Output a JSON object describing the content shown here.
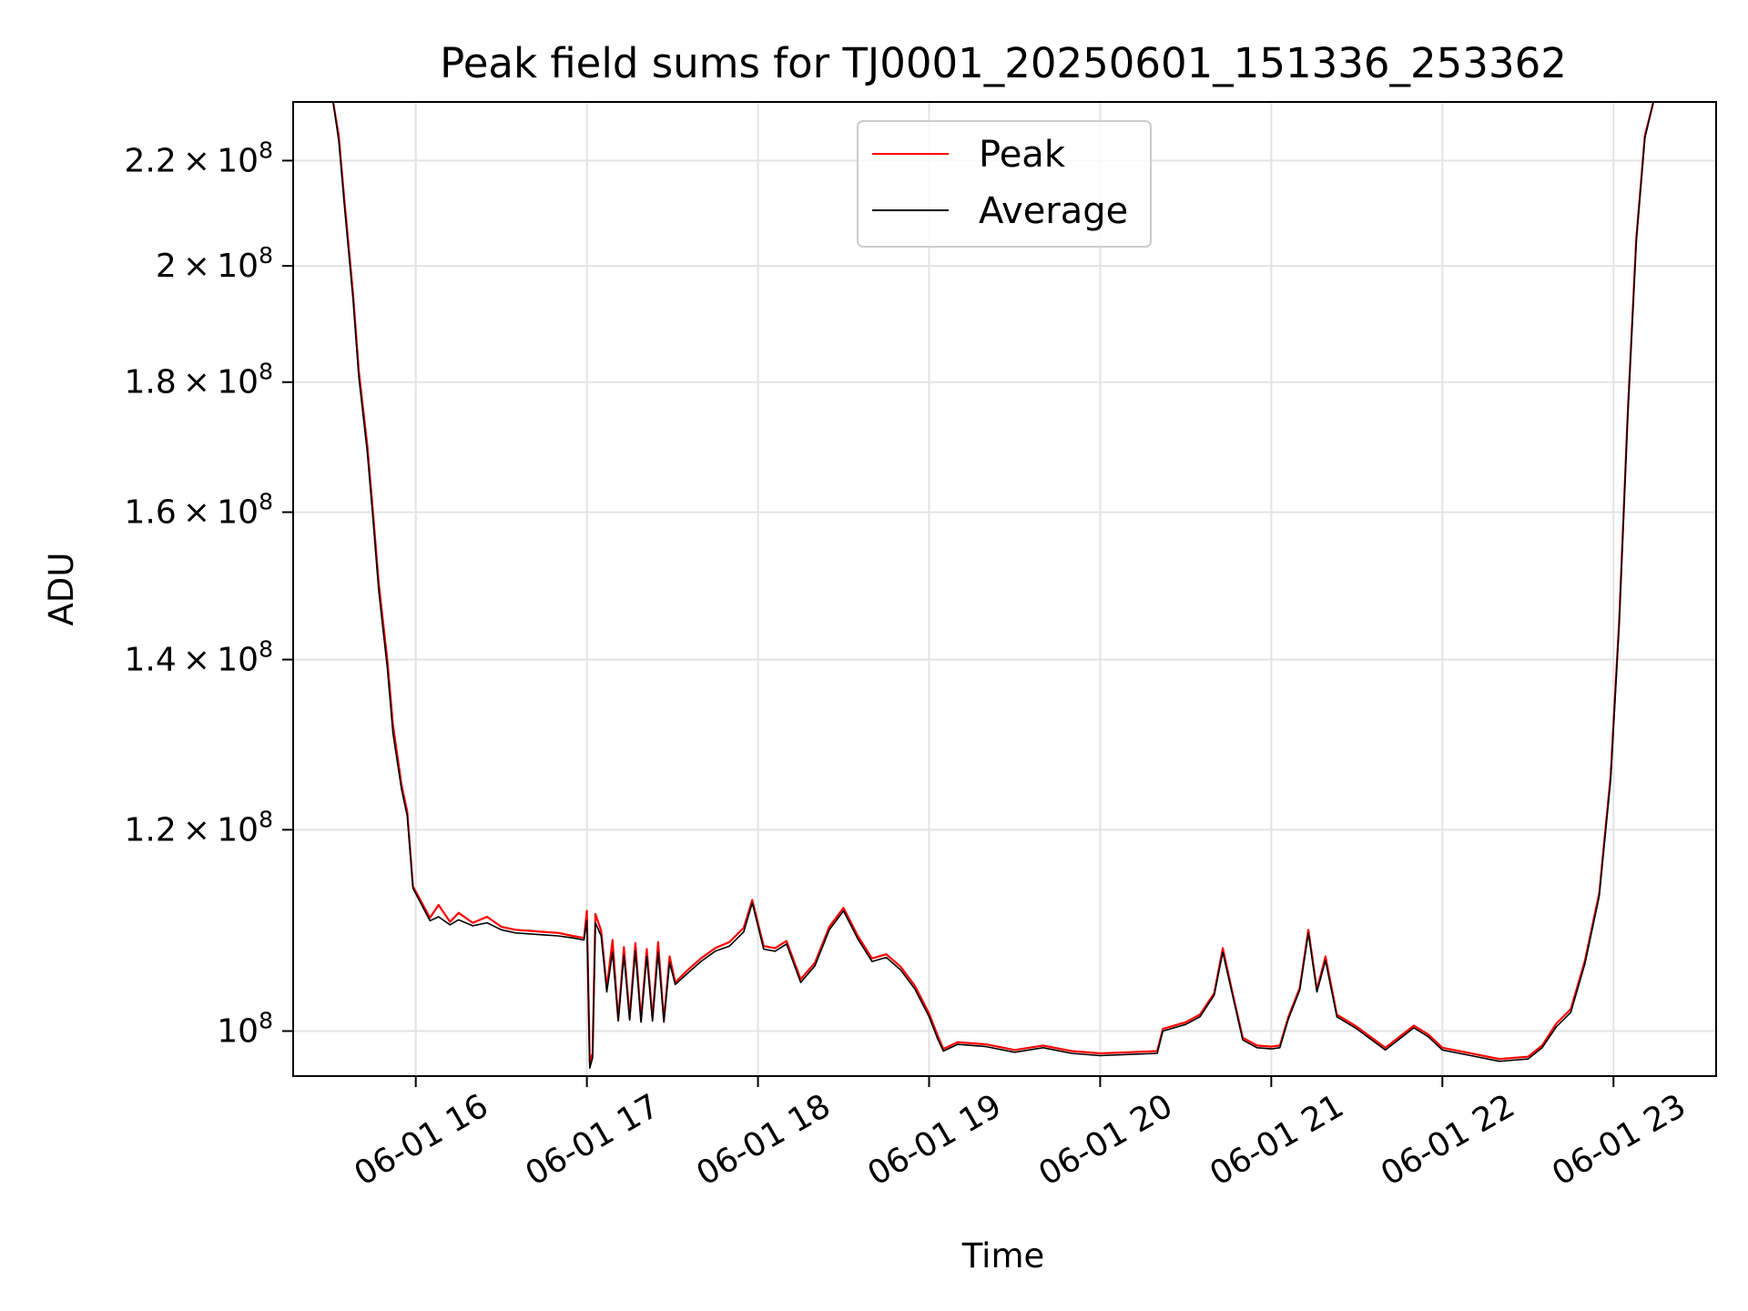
{
  "chart_data": {
    "type": "line",
    "title": "Peak field sums for TJ0001_20250601_151336_253362",
    "xlabel": "Time",
    "ylabel": "ADU",
    "x_axis": {
      "kind": "datetime",
      "range": [
        "2025-06-01 15:17",
        "2025-06-01 23:36"
      ],
      "ticks": [
        {
          "value": "2025-06-01 16:00",
          "label": "06-01 16"
        },
        {
          "value": "2025-06-01 17:00",
          "label": "06-01 17"
        },
        {
          "value": "2025-06-01 18:00",
          "label": "06-01 18"
        },
        {
          "value": "2025-06-01 19:00",
          "label": "06-01 19"
        },
        {
          "value": "2025-06-01 20:00",
          "label": "06-01 20"
        },
        {
          "value": "2025-06-01 21:00",
          "label": "06-01 21"
        },
        {
          "value": "2025-06-01 22:00",
          "label": "06-01 22"
        },
        {
          "value": "2025-06-01 23:00",
          "label": "06-01 23"
        }
      ]
    },
    "y_axis": {
      "scale": "log",
      "range": [
        96000000,
        232000000
      ],
      "ticks": [
        {
          "value": 100000000,
          "mantissa": "",
          "exponent": "8"
        },
        {
          "value": 120000000,
          "mantissa": "1.2",
          "exponent": "8"
        },
        {
          "value": 140000000,
          "mantissa": "1.4",
          "exponent": "8"
        },
        {
          "value": 160000000,
          "mantissa": "1.6",
          "exponent": "8"
        },
        {
          "value": 180000000,
          "mantissa": "1.8",
          "exponent": "8"
        },
        {
          "value": 200000000,
          "mantissa": "2",
          "exponent": "8"
        },
        {
          "value": 220000000,
          "mantissa": "2.2",
          "exponent": "8"
        }
      ]
    },
    "grid": true,
    "legend": {
      "placement": "upper center"
    },
    "series": [
      {
        "name": "Peak",
        "color": "#ff0000",
        "points": [
          [
            "2025-06-01 15:31",
            232000000
          ],
          [
            "2025-06-01 15:33",
            225000000
          ],
          [
            "2025-06-01 15:35",
            212000000
          ],
          [
            "2025-06-01 15:38",
            195000000
          ],
          [
            "2025-06-01 15:40",
            182000000
          ],
          [
            "2025-06-01 15:43",
            170000000
          ],
          [
            "2025-06-01 15:45",
            160000000
          ],
          [
            "2025-06-01 15:47",
            150000000
          ],
          [
            "2025-06-01 15:50",
            140000000
          ],
          [
            "2025-06-01 15:52",
            132000000
          ],
          [
            "2025-06-01 15:55",
            125000000
          ],
          [
            "2025-06-01 15:57",
            122000000
          ],
          [
            "2025-06-01 15:59",
            114000000
          ],
          [
            "2025-06-01 16:05",
            110800000
          ],
          [
            "2025-06-01 16:08",
            112100000
          ],
          [
            "2025-06-01 16:12",
            110400000
          ],
          [
            "2025-06-01 16:15",
            111300000
          ],
          [
            "2025-06-01 16:20",
            110300000
          ],
          [
            "2025-06-01 16:25",
            110900000
          ],
          [
            "2025-06-01 16:30",
            109900000
          ],
          [
            "2025-06-01 16:35",
            109600000
          ],
          [
            "2025-06-01 16:40",
            109500000
          ],
          [
            "2025-06-01 16:45",
            109400000
          ],
          [
            "2025-06-01 16:50",
            109300000
          ],
          [
            "2025-06-01 16:55",
            109000000
          ],
          [
            "2025-06-01 16:59",
            108800000
          ],
          [
            "2025-06-01 17:00",
            111500000
          ],
          [
            "2025-06-01 17:01",
            97200000
          ],
          [
            "2025-06-01 17:02",
            98000000
          ],
          [
            "2025-06-01 17:03",
            111200000
          ],
          [
            "2025-06-01 17:05",
            109500000
          ],
          [
            "2025-06-01 17:07",
            104000000
          ],
          [
            "2025-06-01 17:09",
            108600000
          ],
          [
            "2025-06-01 17:11",
            101000000
          ],
          [
            "2025-06-01 17:13",
            107900000
          ],
          [
            "2025-06-01 17:15",
            101200000
          ],
          [
            "2025-06-01 17:17",
            108300000
          ],
          [
            "2025-06-01 17:19",
            101000000
          ],
          [
            "2025-06-01 17:21",
            107700000
          ],
          [
            "2025-06-01 17:23",
            101100000
          ],
          [
            "2025-06-01 17:25",
            108400000
          ],
          [
            "2025-06-01 17:27",
            101000000
          ],
          [
            "2025-06-01 17:29",
            107000000
          ],
          [
            "2025-06-01 17:31",
            104500000
          ],
          [
            "2025-06-01 17:35",
            105600000
          ],
          [
            "2025-06-01 17:40",
            106800000
          ],
          [
            "2025-06-01 17:45",
            107800000
          ],
          [
            "2025-06-01 17:50",
            108400000
          ],
          [
            "2025-06-01 17:55",
            109800000
          ],
          [
            "2025-06-01 17:58",
            112600000
          ],
          [
            "2025-06-01 18:02",
            108000000
          ],
          [
            "2025-06-01 18:06",
            107800000
          ],
          [
            "2025-06-01 18:10",
            108500000
          ],
          [
            "2025-06-01 18:15",
            104800000
          ],
          [
            "2025-06-01 18:20",
            106400000
          ],
          [
            "2025-06-01 18:25",
            109900000
          ],
          [
            "2025-06-01 18:30",
            111800000
          ],
          [
            "2025-06-01 18:35",
            109000000
          ],
          [
            "2025-06-01 18:40",
            106800000
          ],
          [
            "2025-06-01 18:45",
            107200000
          ],
          [
            "2025-06-01 18:50",
            106000000
          ],
          [
            "2025-06-01 18:55",
            104200000
          ],
          [
            "2025-06-01 19:00",
            101600000
          ],
          [
            "2025-06-01 19:03",
            99600000
          ],
          [
            "2025-06-01 19:05",
            98400000
          ],
          [
            "2025-06-01 19:10",
            99000000
          ],
          [
            "2025-06-01 19:20",
            98800000
          ],
          [
            "2025-06-01 19:30",
            98300000
          ],
          [
            "2025-06-01 19:40",
            98700000
          ],
          [
            "2025-06-01 19:50",
            98200000
          ],
          [
            "2025-06-01 20:00",
            98000000
          ],
          [
            "2025-06-01 20:10",
            98100000
          ],
          [
            "2025-06-01 20:20",
            98200000
          ],
          [
            "2025-06-01 20:22",
            100200000
          ],
          [
            "2025-06-01 20:30",
            100800000
          ],
          [
            "2025-06-01 20:35",
            101500000
          ],
          [
            "2025-06-01 20:40",
            103500000
          ],
          [
            "2025-06-01 20:43",
            107800000
          ],
          [
            "2025-06-01 20:46",
            104000000
          ],
          [
            "2025-06-01 20:50",
            99400000
          ],
          [
            "2025-06-01 20:55",
            98700000
          ],
          [
            "2025-06-01 21:00",
            98600000
          ],
          [
            "2025-06-01 21:03",
            98700000
          ],
          [
            "2025-06-01 21:06",
            101300000
          ],
          [
            "2025-06-01 21:10",
            104000000
          ],
          [
            "2025-06-01 21:13",
            109600000
          ],
          [
            "2025-06-01 21:16",
            103800000
          ],
          [
            "2025-06-01 21:19",
            107000000
          ],
          [
            "2025-06-01 21:23",
            101500000
          ],
          [
            "2025-06-01 21:30",
            100400000
          ],
          [
            "2025-06-01 21:40",
            98500000
          ],
          [
            "2025-06-01 21:50",
            100500000
          ],
          [
            "2025-06-01 21:55",
            99700000
          ],
          [
            "2025-06-01 22:00",
            98500000
          ],
          [
            "2025-06-01 22:10",
            98000000
          ],
          [
            "2025-06-01 22:20",
            97500000
          ],
          [
            "2025-06-01 22:30",
            97700000
          ],
          [
            "2025-06-01 22:35",
            98700000
          ],
          [
            "2025-06-01 22:40",
            100700000
          ],
          [
            "2025-06-01 22:45",
            102000000
          ],
          [
            "2025-06-01 22:50",
            106600000
          ],
          [
            "2025-06-01 22:55",
            113300000
          ],
          [
            "2025-06-01 22:59",
            126000000
          ],
          [
            "2025-06-01 23:02",
            145000000
          ],
          [
            "2025-06-01 23:05",
            175000000
          ],
          [
            "2025-06-01 23:08",
            205000000
          ],
          [
            "2025-06-01 23:11",
            225000000
          ],
          [
            "2025-06-01 23:14",
            232000000
          ]
        ]
      },
      {
        "name": "Average",
        "color": "#000000",
        "points": [
          [
            "2025-06-01 15:31",
            232000000
          ],
          [
            "2025-06-01 15:33",
            224000000
          ],
          [
            "2025-06-01 15:35",
            211000000
          ],
          [
            "2025-06-01 15:38",
            194000000
          ],
          [
            "2025-06-01 15:40",
            181000000
          ],
          [
            "2025-06-01 15:43",
            169000000
          ],
          [
            "2025-06-01 15:45",
            159000000
          ],
          [
            "2025-06-01 15:47",
            149000000
          ],
          [
            "2025-06-01 15:50",
            139000000
          ],
          [
            "2025-06-01 15:52",
            131000000
          ],
          [
            "2025-06-01 15:55",
            124500000
          ],
          [
            "2025-06-01 15:57",
            121500000
          ],
          [
            "2025-06-01 15:59",
            113800000
          ],
          [
            "2025-06-01 16:05",
            110500000
          ],
          [
            "2025-06-01 16:08",
            110900000
          ],
          [
            "2025-06-01 16:12",
            110100000
          ],
          [
            "2025-06-01 16:15",
            110600000
          ],
          [
            "2025-06-01 16:20",
            110000000
          ],
          [
            "2025-06-01 16:25",
            110300000
          ],
          [
            "2025-06-01 16:30",
            109600000
          ],
          [
            "2025-06-01 16:35",
            109300000
          ],
          [
            "2025-06-01 16:40",
            109200000
          ],
          [
            "2025-06-01 16:45",
            109100000
          ],
          [
            "2025-06-01 16:50",
            109000000
          ],
          [
            "2025-06-01 16:55",
            108800000
          ],
          [
            "2025-06-01 16:59",
            108600000
          ],
          [
            "2025-06-01 17:00",
            110500000
          ],
          [
            "2025-06-01 17:01",
            96700000
          ],
          [
            "2025-06-01 17:02",
            97600000
          ],
          [
            "2025-06-01 17:03",
            110300000
          ],
          [
            "2025-06-01 17:05",
            109000000
          ],
          [
            "2025-06-01 17:07",
            103600000
          ],
          [
            "2025-06-01 17:09",
            107400000
          ],
          [
            "2025-06-01 17:11",
            100900000
          ],
          [
            "2025-06-01 17:13",
            107100000
          ],
          [
            "2025-06-01 17:15",
            101000000
          ],
          [
            "2025-06-01 17:17",
            107500000
          ],
          [
            "2025-06-01 17:19",
            100800000
          ],
          [
            "2025-06-01 17:21",
            107000000
          ],
          [
            "2025-06-01 17:23",
            100900000
          ],
          [
            "2025-06-01 17:25",
            107400000
          ],
          [
            "2025-06-01 17:27",
            100800000
          ],
          [
            "2025-06-01 17:29",
            106400000
          ],
          [
            "2025-06-01 17:31",
            104300000
          ],
          [
            "2025-06-01 17:35",
            105300000
          ],
          [
            "2025-06-01 17:40",
            106500000
          ],
          [
            "2025-06-01 17:45",
            107500000
          ],
          [
            "2025-06-01 17:50",
            108000000
          ],
          [
            "2025-06-01 17:55",
            109400000
          ],
          [
            "2025-06-01 17:58",
            112300000
          ],
          [
            "2025-06-01 18:02",
            107700000
          ],
          [
            "2025-06-01 18:06",
            107500000
          ],
          [
            "2025-06-01 18:10",
            108200000
          ],
          [
            "2025-06-01 18:15",
            104500000
          ],
          [
            "2025-06-01 18:20",
            106100000
          ],
          [
            "2025-06-01 18:25",
            109600000
          ],
          [
            "2025-06-01 18:30",
            111500000
          ],
          [
            "2025-06-01 18:35",
            108700000
          ],
          [
            "2025-06-01 18:40",
            106500000
          ],
          [
            "2025-06-01 18:45",
            106900000
          ],
          [
            "2025-06-01 18:50",
            105700000
          ],
          [
            "2025-06-01 18:55",
            103900000
          ],
          [
            "2025-06-01 19:00",
            101300000
          ],
          [
            "2025-06-01 19:03",
            99300000
          ],
          [
            "2025-06-01 19:05",
            98200000
          ],
          [
            "2025-06-01 19:10",
            98800000
          ],
          [
            "2025-06-01 19:20",
            98600000
          ],
          [
            "2025-06-01 19:30",
            98100000
          ],
          [
            "2025-06-01 19:40",
            98500000
          ],
          [
            "2025-06-01 19:50",
            98000000
          ],
          [
            "2025-06-01 20:00",
            97800000
          ],
          [
            "2025-06-01 20:10",
            97900000
          ],
          [
            "2025-06-01 20:20",
            98000000
          ],
          [
            "2025-06-01 20:22",
            100000000
          ],
          [
            "2025-06-01 20:30",
            100600000
          ],
          [
            "2025-06-01 20:35",
            101300000
          ],
          [
            "2025-06-01 20:40",
            103300000
          ],
          [
            "2025-06-01 20:43",
            107400000
          ],
          [
            "2025-06-01 20:46",
            103800000
          ],
          [
            "2025-06-01 20:50",
            99200000
          ],
          [
            "2025-06-01 20:55",
            98500000
          ],
          [
            "2025-06-01 21:00",
            98400000
          ],
          [
            "2025-06-01 21:03",
            98500000
          ],
          [
            "2025-06-01 21:06",
            101100000
          ],
          [
            "2025-06-01 21:10",
            103800000
          ],
          [
            "2025-06-01 21:13",
            109300000
          ],
          [
            "2025-06-01 21:16",
            103600000
          ],
          [
            "2025-06-01 21:19",
            106600000
          ],
          [
            "2025-06-01 21:23",
            101300000
          ],
          [
            "2025-06-01 21:30",
            100200000
          ],
          [
            "2025-06-01 21:40",
            98300000
          ],
          [
            "2025-06-01 21:50",
            100300000
          ],
          [
            "2025-06-01 21:55",
            99500000
          ],
          [
            "2025-06-01 22:00",
            98300000
          ],
          [
            "2025-06-01 22:10",
            97800000
          ],
          [
            "2025-06-01 22:20",
            97300000
          ],
          [
            "2025-06-01 22:30",
            97500000
          ],
          [
            "2025-06-01 22:35",
            98500000
          ],
          [
            "2025-06-01 22:40",
            100400000
          ],
          [
            "2025-06-01 22:45",
            101700000
          ],
          [
            "2025-06-01 22:50",
            106300000
          ],
          [
            "2025-06-01 22:55",
            113000000
          ],
          [
            "2025-06-01 22:59",
            125500000
          ],
          [
            "2025-06-01 23:02",
            144500000
          ],
          [
            "2025-06-01 23:05",
            174500000
          ],
          [
            "2025-06-01 23:08",
            204500000
          ],
          [
            "2025-06-01 23:11",
            224500000
          ],
          [
            "2025-06-01 23:14",
            232000000
          ]
        ]
      }
    ]
  }
}
